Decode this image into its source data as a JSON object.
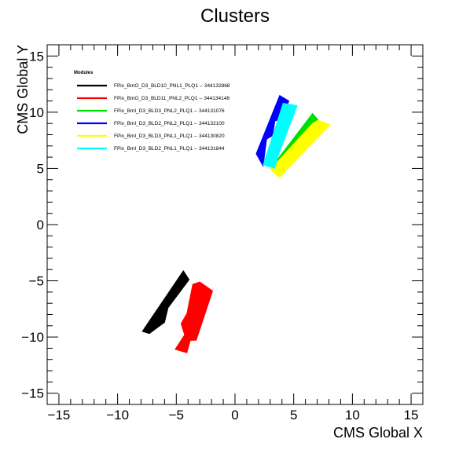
{
  "chart_data": {
    "type": "scatter",
    "title": "Clusters",
    "xlabel": "CMS Global X",
    "ylabel": "CMS Global Y",
    "xlim": [
      -16,
      16
    ],
    "ylim": [
      -16,
      16
    ],
    "x_ticks": [
      -15,
      -10,
      -5,
      0,
      5,
      10,
      15
    ],
    "y_ticks": [
      -15,
      -10,
      -5,
      0,
      5,
      10,
      15
    ],
    "grid": false,
    "legend": {
      "title": "Modules",
      "placement": "top-left"
    },
    "series": [
      {
        "name": "FPix_BmO_D3_BLD10_PNL1_PLQ1 -- 344132868",
        "color": "#000000",
        "regions": [
          [
            [
              -7.9,
              -9.5
            ],
            [
              -4.4,
              -4.1
            ],
            [
              -3.9,
              -4.9
            ],
            [
              -5.7,
              -7.4
            ],
            [
              -6.0,
              -8.7
            ],
            [
              -7.3,
              -9.7
            ]
          ]
        ]
      },
      {
        "name": "FPix_BmO_D3_BLD11_PNL2_PLQ1 -- 344134148",
        "color": "#ff0000",
        "regions": [
          [
            [
              -5.1,
              -11.1
            ],
            [
              -4.1,
              -11.4
            ],
            [
              -3.8,
              -10.3
            ],
            [
              -3.3,
              -10.3
            ],
            [
              -1.9,
              -5.9
            ],
            [
              -3.0,
              -5.1
            ],
            [
              -3.6,
              -5.3
            ],
            [
              -4.1,
              -7.9
            ],
            [
              -4.6,
              -8.8
            ],
            [
              -4.3,
              -9.8
            ]
          ]
        ]
      },
      {
        "name": "FPix_BmI_D3_BLD3_PNL2_PLQ1 -- 344131076",
        "color": "#00e000",
        "regions": [
          [
            [
              3.1,
              5.1
            ],
            [
              3.6,
              4.6
            ],
            [
              7.1,
              9.3
            ],
            [
              6.6,
              9.9
            ]
          ]
        ]
      },
      {
        "name": "FPix_BmI_D3_BLD2_PNL2_PLQ1 -- 344132100",
        "color": "#0000ff",
        "regions": [
          [
            [
              1.8,
              6.3
            ],
            [
              3.8,
              11.5
            ],
            [
              4.6,
              11.0
            ],
            [
              3.9,
              9.4
            ],
            [
              3.4,
              9.2
            ],
            [
              3.2,
              7.9
            ],
            [
              2.7,
              7.6
            ],
            [
              2.4,
              5.2
            ]
          ]
        ]
      },
      {
        "name": "FPix_BmI_D3_BLD3_PNL1_PLQ1 -- 344130820",
        "color": "#ffff00",
        "regions": [
          [
            [
              3.0,
              4.9
            ],
            [
              3.8,
              4.2
            ],
            [
              8.1,
              8.9
            ],
            [
              7.1,
              9.3
            ],
            [
              6.6,
              9.0
            ]
          ]
        ]
      },
      {
        "name": "FPix_BmI_D3_BLD2_PNL1_PLQ1 -- 344131844",
        "color": "#00ffff",
        "regions": [
          [
            [
              2.4,
              5.3
            ],
            [
              4.1,
              10.8
            ],
            [
              5.3,
              10.6
            ],
            [
              3.6,
              5.9
            ],
            [
              3.4,
              5.0
            ]
          ]
        ]
      }
    ]
  }
}
